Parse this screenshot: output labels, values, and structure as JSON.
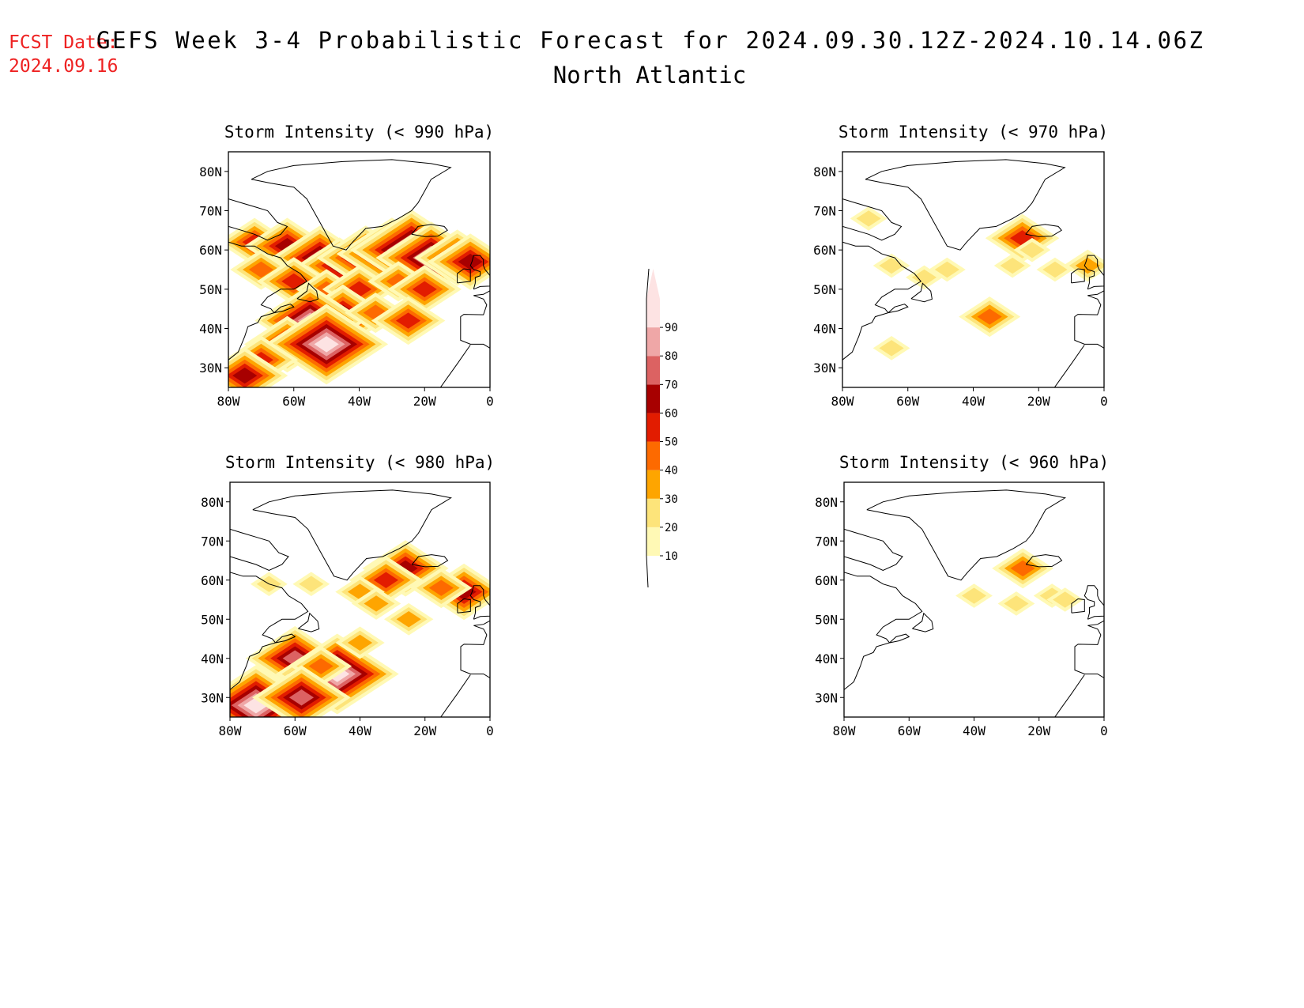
{
  "header": {
    "fcst_label": "FCST Date:",
    "fcst_date": "2024.09.16",
    "title": "GEFS Week 3-4 Probabilistic Forecast for 2024.09.30.12Z-2024.10.14.06Z",
    "subtitle": "North Atlantic"
  },
  "colors": {
    "fcst": "#ee2222",
    "text": "#000000",
    "coast": "#000000"
  },
  "colorbar": {
    "levels": [
      10,
      20,
      30,
      40,
      50,
      60,
      70,
      80,
      90
    ],
    "labels": [
      "10",
      "20",
      "30",
      "40",
      "50",
      "60",
      "70",
      "80",
      "90"
    ],
    "colors": [
      "#fff9b5",
      "#fde47a",
      "#fea500",
      "#fd6a00",
      "#e21c00",
      "#a70000",
      "#dc6262",
      "#efa7a7",
      "#fde3e3"
    ]
  },
  "axes": {
    "lon_ticks": [
      "80W",
      "60W",
      "40W",
      "20W",
      "0"
    ],
    "lat_ticks": [
      "80N",
      "70N",
      "60N",
      "50N",
      "40N",
      "30N"
    ]
  },
  "panels": [
    {
      "id": "p990",
      "title": "Storm Intensity (< 990 hPa)",
      "blobs": [
        {
          "lon": -72,
          "lat": 62,
          "level": 4
        },
        {
          "lon": -62,
          "lat": 61,
          "level": 5
        },
        {
          "lon": -52,
          "lat": 58,
          "level": 6
        },
        {
          "lon": -46,
          "lat": 56,
          "level": 5
        },
        {
          "lon": -38,
          "lat": 58,
          "level": 6
        },
        {
          "lon": -30,
          "lat": 59,
          "level": 7
        },
        {
          "lon": -24,
          "lat": 60,
          "level": 8
        },
        {
          "lon": -18,
          "lat": 58,
          "level": 7
        },
        {
          "lon": -10,
          "lat": 58,
          "level": 5
        },
        {
          "lon": -6,
          "lat": 57,
          "level": 5
        },
        {
          "lon": -70,
          "lat": 55,
          "level": 3
        },
        {
          "lon": -60,
          "lat": 52,
          "level": 4
        },
        {
          "lon": -50,
          "lat": 50,
          "level": 3
        },
        {
          "lon": -40,
          "lat": 50,
          "level": 4
        },
        {
          "lon": -28,
          "lat": 52,
          "level": 3
        },
        {
          "lon": -20,
          "lat": 50,
          "level": 4
        },
        {
          "lon": -45,
          "lat": 43,
          "level": 6
        },
        {
          "lon": -55,
          "lat": 42,
          "level": 7
        },
        {
          "lon": -62,
          "lat": 36,
          "level": 5
        },
        {
          "lon": -50,
          "lat": 36,
          "level": 8
        },
        {
          "lon": -70,
          "lat": 32,
          "level": 4
        },
        {
          "lon": -75,
          "lat": 28,
          "level": 5
        },
        {
          "lon": -35,
          "lat": 44,
          "level": 3
        },
        {
          "lon": -25,
          "lat": 42,
          "level": 4
        }
      ]
    },
    {
      "id": "p970",
      "title": "Storm Intensity (< 970 hPa)",
      "blobs": [
        {
          "lon": -25,
          "lat": 63,
          "level": 4
        },
        {
          "lon": -22,
          "lat": 60,
          "level": 1
        },
        {
          "lon": -28,
          "lat": 56,
          "level": 1
        },
        {
          "lon": -15,
          "lat": 55,
          "level": 1
        },
        {
          "lon": -5,
          "lat": 56,
          "level": 2
        },
        {
          "lon": -48,
          "lat": 55,
          "level": 1
        },
        {
          "lon": -55,
          "lat": 53,
          "level": 1
        },
        {
          "lon": -65,
          "lat": 56,
          "level": 1
        },
        {
          "lon": -35,
          "lat": 43,
          "level": 3
        },
        {
          "lon": -65,
          "lat": 35,
          "level": 1
        },
        {
          "lon": -72,
          "lat": 68,
          "level": 1
        }
      ]
    },
    {
      "id": "p980",
      "title": "Storm Intensity (< 980 hPa)",
      "blobs": [
        {
          "lon": -26,
          "lat": 63,
          "level": 5
        },
        {
          "lon": -32,
          "lat": 60,
          "level": 4
        },
        {
          "lon": -8,
          "lat": 57,
          "level": 5
        },
        {
          "lon": -15,
          "lat": 58,
          "level": 3
        },
        {
          "lon": -40,
          "lat": 57,
          "level": 2
        },
        {
          "lon": -55,
          "lat": 59,
          "level": 1
        },
        {
          "lon": -68,
          "lat": 59,
          "level": 1
        },
        {
          "lon": -35,
          "lat": 54,
          "level": 2
        },
        {
          "lon": -25,
          "lat": 50,
          "level": 2
        },
        {
          "lon": -60,
          "lat": 40,
          "level": 6
        },
        {
          "lon": -47,
          "lat": 36,
          "level": 8
        },
        {
          "lon": -52,
          "lat": 38,
          "level": 3
        },
        {
          "lon": -72,
          "lat": 28,
          "level": 8
        },
        {
          "lon": -58,
          "lat": 30,
          "level": 6
        },
        {
          "lon": -40,
          "lat": 44,
          "level": 2
        }
      ]
    },
    {
      "id": "p960",
      "title": "Storm Intensity (< 960 hPa)",
      "blobs": [
        {
          "lon": -25,
          "lat": 63,
          "level": 3
        },
        {
          "lon": -27,
          "lat": 54,
          "level": 1
        },
        {
          "lon": -40,
          "lat": 56,
          "level": 1
        },
        {
          "lon": -16,
          "lat": 56,
          "level": 1
        },
        {
          "lon": -12,
          "lat": 55,
          "level": 1
        }
      ]
    }
  ]
}
